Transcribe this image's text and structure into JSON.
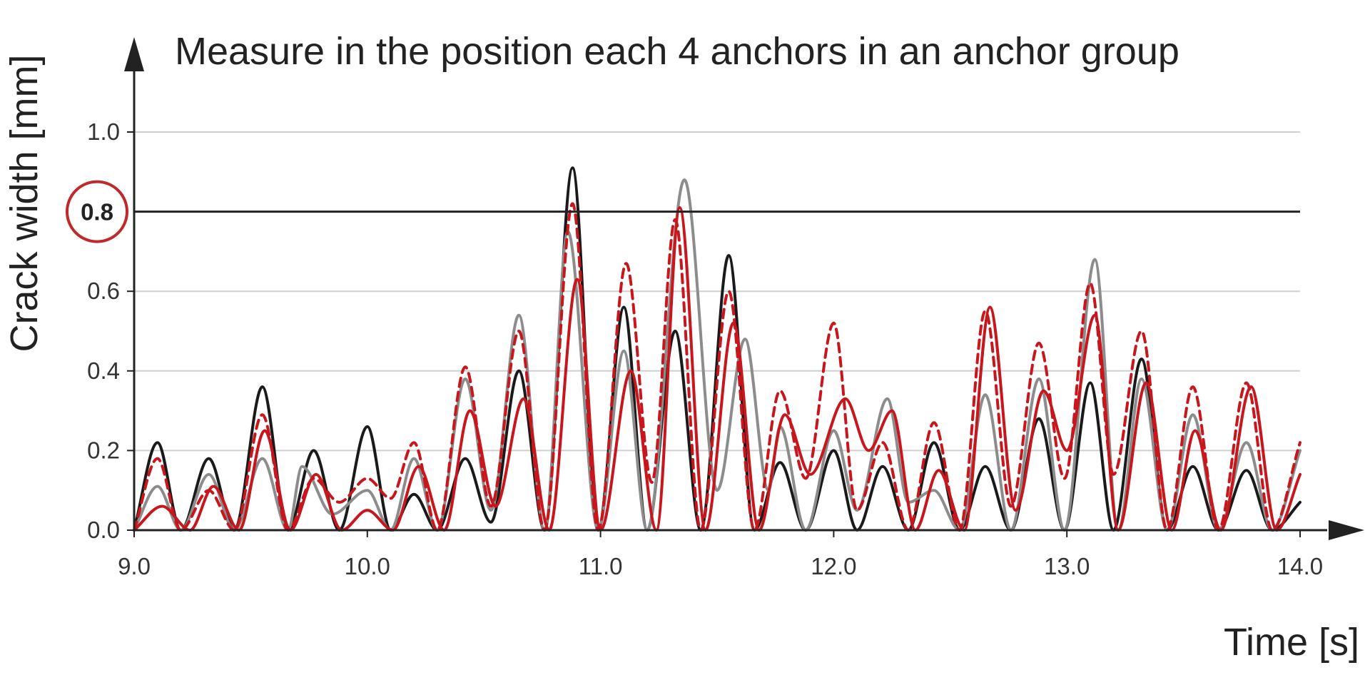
{
  "chart_data": {
    "type": "line",
    "title": "Measure in the position each 4 anchors in an anchor group",
    "xlabel": "Time [s]",
    "ylabel": "Crack width [mm]",
    "xlim": [
      9.0,
      14.0
    ],
    "ylim": [
      0.0,
      1.0
    ],
    "x_ticks": [
      "9.0",
      "10.0",
      "11.0",
      "12.0",
      "13.0",
      "14.0"
    ],
    "y_ticks": [
      "0.0",
      "0.2",
      "0.4",
      "0.6",
      "1.0"
    ],
    "grid": true,
    "reference_line": {
      "value": 0.8,
      "label": "0.8",
      "color": "#222222"
    },
    "highlight_circle_color": "#c0282a",
    "series": [
      {
        "color": "#1a1a1a",
        "dash": "solid",
        "x": [
          9.0,
          9.1,
          9.2,
          9.32,
          9.43,
          9.55,
          9.66,
          9.77,
          9.88,
          10.0,
          10.1,
          10.2,
          10.3,
          10.42,
          10.53,
          10.65,
          10.76,
          10.88,
          10.99,
          11.1,
          11.2,
          11.32,
          11.43,
          11.55,
          11.66,
          11.77,
          11.88,
          12.0,
          12.1,
          12.21,
          12.32,
          12.43,
          12.54,
          12.65,
          12.76,
          12.88,
          12.99,
          13.1,
          13.2,
          13.32,
          13.43,
          13.54,
          13.65,
          13.77,
          13.88,
          14.0
        ],
        "y": [
          0.0,
          0.22,
          0.0,
          0.18,
          0.0,
          0.36,
          0.0,
          0.2,
          0.0,
          0.26,
          0.0,
          0.09,
          0.0,
          0.18,
          0.02,
          0.4,
          0.0,
          0.91,
          0.0,
          0.56,
          0.0,
          0.5,
          0.0,
          0.69,
          0.0,
          0.17,
          0.0,
          0.2,
          0.0,
          0.16,
          0.0,
          0.22,
          0.0,
          0.16,
          0.0,
          0.28,
          0.0,
          0.37,
          0.0,
          0.43,
          0.0,
          0.16,
          0.0,
          0.15,
          0.0,
          0.07
        ]
      },
      {
        "color": "#8c8c8c",
        "dash": "solid",
        "x": [
          9.0,
          9.1,
          9.2,
          9.32,
          9.43,
          9.55,
          9.66,
          9.72,
          9.85,
          10.0,
          10.1,
          10.2,
          10.3,
          10.42,
          10.53,
          10.65,
          10.76,
          10.86,
          10.99,
          11.1,
          11.2,
          11.36,
          11.5,
          11.62,
          11.72,
          11.77,
          11.88,
          12.0,
          12.1,
          12.23,
          12.32,
          12.43,
          12.54,
          12.65,
          12.76,
          12.88,
          12.99,
          13.12,
          13.22,
          13.32,
          13.43,
          13.54,
          13.65,
          13.77,
          13.88,
          14.0
        ],
        "y": [
          0.0,
          0.11,
          0.0,
          0.14,
          0.0,
          0.18,
          0.0,
          0.16,
          0.04,
          0.1,
          0.0,
          0.18,
          0.0,
          0.38,
          0.05,
          0.54,
          0.0,
          0.75,
          0.0,
          0.45,
          0.0,
          0.88,
          0.1,
          0.48,
          0.1,
          0.26,
          0.0,
          0.25,
          0.05,
          0.33,
          0.07,
          0.1,
          0.0,
          0.34,
          0.0,
          0.38,
          0.0,
          0.68,
          0.0,
          0.38,
          0.0,
          0.29,
          0.0,
          0.22,
          0.0,
          0.2
        ]
      },
      {
        "color": "#c8161d",
        "dash": "dashed",
        "x": [
          9.0,
          9.1,
          9.2,
          9.32,
          9.43,
          9.55,
          9.66,
          9.77,
          9.88,
          10.0,
          10.1,
          10.2,
          10.3,
          10.42,
          10.53,
          10.65,
          10.76,
          10.88,
          10.99,
          11.11,
          11.22,
          11.32,
          11.43,
          11.55,
          11.66,
          11.77,
          11.88,
          12.0,
          12.1,
          12.21,
          12.32,
          12.43,
          12.54,
          12.65,
          12.76,
          12.88,
          12.99,
          13.1,
          13.2,
          13.32,
          13.43,
          13.54,
          13.65,
          13.77,
          13.88,
          14.0
        ],
        "y": [
          0.0,
          0.18,
          0.0,
          0.1,
          0.0,
          0.29,
          0.0,
          0.13,
          0.07,
          0.13,
          0.08,
          0.22,
          0.0,
          0.41,
          0.06,
          0.5,
          0.0,
          0.82,
          0.0,
          0.67,
          0.12,
          0.78,
          0.0,
          0.6,
          0.0,
          0.35,
          0.13,
          0.52,
          0.05,
          0.22,
          0.0,
          0.27,
          0.0,
          0.55,
          0.06,
          0.47,
          0.13,
          0.62,
          0.14,
          0.5,
          0.0,
          0.36,
          0.0,
          0.37,
          0.0,
          0.22
        ]
      },
      {
        "color": "#c8161d",
        "dash": "solid",
        "x": [
          9.0,
          9.12,
          9.24,
          9.34,
          9.45,
          9.56,
          9.67,
          9.78,
          9.89,
          10.0,
          10.11,
          10.22,
          10.33,
          10.44,
          10.55,
          10.67,
          10.78,
          10.9,
          11.0,
          11.13,
          11.24,
          11.34,
          11.45,
          11.57,
          11.68,
          11.79,
          11.9,
          12.05,
          12.15,
          12.25,
          12.35,
          12.45,
          12.56,
          12.67,
          12.78,
          12.9,
          13.0,
          13.12,
          13.22,
          13.34,
          13.45,
          13.55,
          13.66,
          13.79,
          13.9,
          14.0
        ],
        "y": [
          0.0,
          0.06,
          0.0,
          0.11,
          0.0,
          0.25,
          0.0,
          0.14,
          0.0,
          0.05,
          0.0,
          0.16,
          0.0,
          0.3,
          0.06,
          0.33,
          0.0,
          0.63,
          0.0,
          0.4,
          0.0,
          0.81,
          0.0,
          0.52,
          0.0,
          0.29,
          0.14,
          0.33,
          0.2,
          0.3,
          0.0,
          0.15,
          0.0,
          0.56,
          0.05,
          0.35,
          0.2,
          0.54,
          0.0,
          0.37,
          0.0,
          0.25,
          0.0,
          0.36,
          0.0,
          0.14
        ]
      }
    ]
  }
}
